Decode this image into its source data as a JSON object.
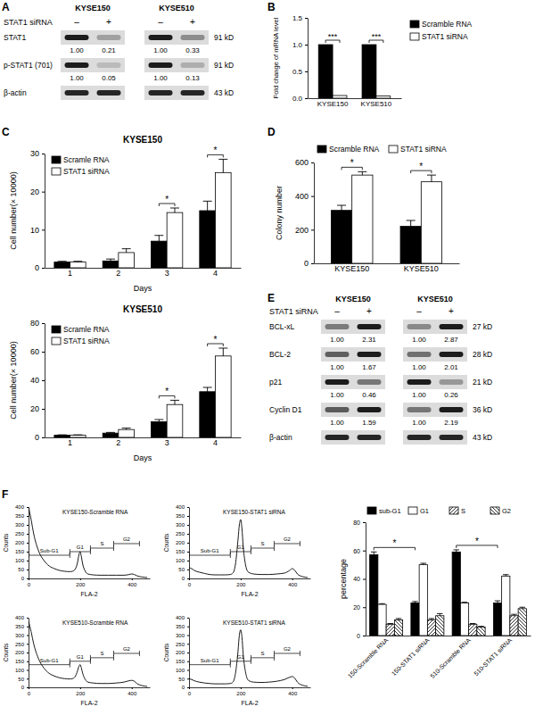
{
  "panel_labels": [
    "A",
    "B",
    "C",
    "D",
    "E",
    "F"
  ],
  "blots": [
    {
      "cell_lines": [
        "KYSE150",
        "KYSE510"
      ],
      "treatment": "STAT1 siRNA",
      "lanes": [
        "–",
        "+"
      ],
      "rows": [
        {
          "protein": "STAT1",
          "size": "91 kD",
          "quant": [
            [
              {
                "value": 1.0,
                "label": "1.00"
              },
              {
                "value": 0.21,
                "label": "0.21"
              }
            ],
            [
              {
                "value": 1.0,
                "label": "1.00"
              },
              {
                "value": 0.33,
                "label": "0.33"
              }
            ]
          ]
        },
        {
          "protein": "p-STAT1 (701)",
          "size": "91 kD",
          "quant": [
            [
              {
                "value": 1.0,
                "label": "1.00"
              },
              {
                "value": 0.05,
                "label": "0.05"
              }
            ],
            [
              {
                "value": 1.0,
                "label": "1.00"
              },
              {
                "value": 0.13,
                "label": "0.13"
              }
            ]
          ]
        },
        {
          "protein": "β-actin",
          "size": "43 kD"
        }
      ]
    },
    {
      "cell_lines": [
        "KYSE150",
        "KYSE510"
      ],
      "treatment": "STAT1 siRNA",
      "lanes": [
        "–",
        "+"
      ],
      "rows": [
        {
          "protein": "BCL-xL",
          "size": "27 kD",
          "quant": [
            [
              {
                "value": 1.0,
                "label": "1.00"
              },
              {
                "value": 2.31,
                "label": "2.31"
              }
            ],
            [
              {
                "value": 1.0,
                "label": "1.00"
              },
              {
                "value": 2.87,
                "label": "2.87"
              }
            ]
          ]
        },
        {
          "protein": "BCL-2",
          "size": "28 kD",
          "quant": [
            [
              {
                "value": 1.0,
                "label": "1.00"
              },
              {
                "value": 1.67,
                "label": "1.67"
              }
            ],
            [
              {
                "value": 1.0,
                "label": "1.00"
              },
              {
                "value": 2.01,
                "label": "2.01"
              }
            ]
          ]
        },
        {
          "protein": "p21",
          "size": "21 kD",
          "quant": [
            [
              {
                "value": 1.0,
                "label": "1.00"
              },
              {
                "value": 0.46,
                "label": "0.46"
              }
            ],
            [
              {
                "value": 1.0,
                "label": "1.00"
              },
              {
                "value": 0.26,
                "label": "0.26"
              }
            ]
          ]
        },
        {
          "protein": "Cyclin D1",
          "size": "36 kD",
          "quant": [
            [
              {
                "value": 1.0,
                "label": "1.00"
              },
              {
                "value": 1.59,
                "label": "1.59"
              }
            ],
            [
              {
                "value": 1.0,
                "label": "1.00"
              },
              {
                "value": 2.19,
                "label": "2.19"
              }
            ]
          ]
        },
        {
          "protein": "β-actin",
          "size": "43 kD"
        }
      ]
    }
  ],
  "chart_data": [
    {
      "type": "bar",
      "categories": [
        "KYSE150",
        "KYSE510"
      ],
      "series": [
        {
          "name": "Scramble RNA",
          "color": "#000000",
          "values": [
            1.0,
            1.0
          ]
        },
        {
          "name": "STAT1 siRNA",
          "color": "#ffffff",
          "values": [
            0.05,
            0.04
          ]
        }
      ],
      "ylim": [
        0,
        1.5
      ],
      "yticks": [
        {
          "value": 0,
          "label": "0.0"
        },
        {
          "value": 0.5,
          "label": "0.5"
        },
        {
          "value": 1,
          "label": "1.0"
        },
        {
          "value": 1.5,
          "label": "1.5"
        }
      ],
      "ylabel": "Fold change of mRNA level",
      "legend": "top-right",
      "annotations": [
        {
          "text": "***",
          "category": 0
        },
        {
          "text": "***",
          "category": 1
        }
      ]
    },
    {
      "type": "bar",
      "title": "KYSE150",
      "categories": [
        "1",
        "2",
        "3",
        "4"
      ],
      "xlabel": "Days",
      "ylabel": "Cell number(× 10000)",
      "series": [
        {
          "name": "Scramle RNA",
          "color": "#000000",
          "values": [
            1.5,
            1.8,
            7,
            15
          ],
          "errors": [
            0.2,
            0.5,
            1.5,
            2.5
          ]
        },
        {
          "name": "STAT1 siRNA",
          "color": "#ffffff",
          "values": [
            1.5,
            4,
            14.5,
            25
          ],
          "errors": [
            0.2,
            1,
            1.2,
            3.5
          ]
        }
      ],
      "ylim": [
        0,
        30
      ],
      "yticks": [
        0,
        10,
        20,
        30
      ],
      "legend": "top-left",
      "annotations": [
        {
          "text": "*",
          "category": 2
        },
        {
          "text": "*",
          "category": 3
        }
      ]
    },
    {
      "type": "bar",
      "title": "KYSE510",
      "categories": [
        "1",
        "2",
        "3",
        "4"
      ],
      "xlabel": "Days",
      "ylabel": "Cell number(× 10000)",
      "series": [
        {
          "name": "Scramle RNA",
          "color": "#000000",
          "values": [
            1.5,
            3,
            11,
            32
          ],
          "errors": [
            0.3,
            0.5,
            1.5,
            3
          ]
        },
        {
          "name": "STAT1 siRNA",
          "color": "#ffffff",
          "values": [
            1.5,
            5.5,
            23,
            57
          ],
          "errors": [
            0.3,
            1,
            3,
            5.5
          ]
        }
      ],
      "ylim": [
        0,
        80
      ],
      "yticks": [
        0,
        20,
        40,
        60,
        80
      ],
      "legend": "top-left",
      "annotations": [
        {
          "text": "*",
          "category": 2
        },
        {
          "text": "*",
          "category": 3
        }
      ]
    },
    {
      "type": "bar",
      "categories": [
        "KYSE150",
        "KYSE510"
      ],
      "ylabel": "Colony number",
      "series": [
        {
          "name": "Scramble RNA",
          "color": "#000000",
          "values": [
            315,
            220
          ],
          "errors": [
            30,
            35
          ]
        },
        {
          "name": "STAT1 siRNA",
          "color": "#ffffff",
          "values": [
            525,
            485
          ],
          "errors": [
            20,
            40
          ]
        }
      ],
      "ylim": [
        0,
        600
      ],
      "yticks": [
        0,
        200,
        400,
        600
      ],
      "legend": "top-left",
      "annotations": [
        {
          "text": "*",
          "category": 0
        },
        {
          "text": "*",
          "category": 1
        }
      ]
    },
    {
      "type": "line",
      "title": "KYSE150-Scramble RNA",
      "xlabel": "FLA-2",
      "ylabel": "Counts",
      "color": "#000000",
      "x": [
        0,
        10,
        20,
        40,
        60,
        80,
        100,
        120,
        140,
        160,
        170,
        180,
        190,
        195,
        200,
        205,
        210,
        220,
        230,
        250,
        280,
        310,
        340,
        370,
        390,
        400,
        410,
        420,
        440,
        460
      ],
      "values": [
        400,
        330,
        250,
        150,
        100,
        70,
        55,
        45,
        40,
        38,
        40,
        50,
        90,
        130,
        150,
        120,
        80,
        40,
        25,
        20,
        18,
        18,
        18,
        18,
        22,
        25,
        22,
        15,
        8,
        5
      ],
      "xlim": [
        0,
        470
      ],
      "xticks": [
        0,
        200,
        400
      ],
      "ylim": [
        0,
        400
      ],
      "yticks": [
        0,
        50,
        100,
        150,
        200,
        250,
        300,
        350,
        400
      ],
      "gates": [
        {
          "label": "Sub-G1",
          "start": 0,
          "end": 160,
          "level": 130
        },
        {
          "label": "G1",
          "start": 160,
          "end": 240,
          "level": 150
        },
        {
          "label": "S",
          "start": 240,
          "end": 330,
          "level": 170
        },
        {
          "label": "G2",
          "start": 330,
          "end": 430,
          "level": 195
        }
      ]
    },
    {
      "type": "line",
      "title": "KYSE150-STAT1 siRNA",
      "xlabel": "FLA-2",
      "ylabel": "Counts",
      "color": "#000000",
      "x": [
        0,
        10,
        20,
        40,
        60,
        80,
        100,
        120,
        140,
        160,
        170,
        180,
        190,
        195,
        200,
        205,
        210,
        220,
        230,
        250,
        280,
        310,
        340,
        370,
        390,
        400,
        410,
        420,
        440,
        460
      ],
      "values": [
        60,
        55,
        45,
        35,
        28,
        22,
        20,
        20,
        20,
        22,
        30,
        80,
        220,
        300,
        330,
        280,
        180,
        70,
        35,
        25,
        22,
        22,
        25,
        30,
        45,
        55,
        45,
        25,
        10,
        5
      ],
      "xlim": [
        0,
        470
      ],
      "xticks": [
        0,
        200,
        400
      ],
      "ylim": [
        0,
        400
      ],
      "yticks": [
        0,
        50,
        100,
        150,
        200,
        250,
        300,
        350,
        400
      ],
      "gates": [
        {
          "label": "Sub-G1",
          "start": 0,
          "end": 160,
          "level": 130
        },
        {
          "label": "G1",
          "start": 160,
          "end": 240,
          "level": 150
        },
        {
          "label": "S",
          "start": 240,
          "end": 330,
          "level": 170
        },
        {
          "label": "G2",
          "start": 330,
          "end": 430,
          "level": 195
        }
      ]
    },
    {
      "type": "line",
      "title": "KYSE510-Scramble RNA",
      "xlabel": "FLA-2",
      "ylabel": "Counts",
      "color": "#000000",
      "x": [
        0,
        10,
        20,
        40,
        60,
        80,
        100,
        120,
        140,
        160,
        170,
        180,
        190,
        195,
        200,
        205,
        210,
        220,
        230,
        250,
        280,
        310,
        340,
        370,
        390,
        400,
        410,
        420,
        440,
        460
      ],
      "values": [
        380,
        320,
        250,
        160,
        110,
        80,
        65,
        55,
        50,
        48,
        50,
        60,
        95,
        120,
        130,
        110,
        80,
        45,
        30,
        25,
        22,
        22,
        25,
        30,
        38,
        40,
        35,
        22,
        10,
        5
      ],
      "xlim": [
        0,
        470
      ],
      "xticks": [
        0,
        200,
        400
      ],
      "ylim": [
        0,
        400
      ],
      "yticks": [
        0,
        50,
        100,
        150,
        200,
        250,
        300,
        350,
        400
      ],
      "gates": [
        {
          "label": "Sub-G1",
          "start": 0,
          "end": 160,
          "level": 130
        },
        {
          "label": "G1",
          "start": 160,
          "end": 240,
          "level": 150
        },
        {
          "label": "S",
          "start": 240,
          "end": 330,
          "level": 170
        },
        {
          "label": "G2",
          "start": 330,
          "end": 430,
          "level": 195
        }
      ]
    },
    {
      "type": "line",
      "title": "KYSE510-STAT1 siRNA",
      "xlabel": "FLA-2",
      "ylabel": "Counts",
      "color": "#000000",
      "x": [
        0,
        10,
        20,
        40,
        60,
        80,
        100,
        120,
        140,
        160,
        170,
        180,
        190,
        195,
        200,
        205,
        210,
        220,
        230,
        250,
        280,
        310,
        340,
        370,
        390,
        400,
        410,
        420,
        440,
        460
      ],
      "values": [
        50,
        45,
        38,
        30,
        25,
        22,
        20,
        20,
        20,
        22,
        30,
        80,
        210,
        300,
        330,
        290,
        190,
        80,
        40,
        30,
        28,
        30,
        35,
        45,
        58,
        62,
        52,
        30,
        12,
        6
      ],
      "xlim": [
        0,
        470
      ],
      "xticks": [
        0,
        200,
        400
      ],
      "ylim": [
        0,
        400
      ],
      "yticks": [
        0,
        50,
        100,
        150,
        200,
        250,
        300,
        350,
        400
      ],
      "gates": [
        {
          "label": "Sub-G1",
          "start": 0,
          "end": 160,
          "level": 130
        },
        {
          "label": "G1",
          "start": 160,
          "end": 240,
          "level": 150
        },
        {
          "label": "S",
          "start": 240,
          "end": 330,
          "level": 170
        },
        {
          "label": "G2",
          "start": 330,
          "end": 430,
          "level": 195
        }
      ]
    },
    {
      "type": "bar",
      "categories": [
        "150-Scramble RNA",
        "150-STAT1 siRNA",
        "510-Scramble RNA",
        "510-STAT1 siRNA"
      ],
      "ylabel": "percentage",
      "series": [
        {
          "name": "sub-G1",
          "color": "#000000",
          "values": [
            57,
            23,
            59,
            23
          ],
          "errors": [
            2,
            1,
            1.5,
            1.5
          ]
        },
        {
          "name": "G1",
          "color": "#ffffff",
          "values": [
            22,
            50,
            23,
            42
          ],
          "errors": [
            0.5,
            1,
            0.5,
            1
          ]
        },
        {
          "name": "S",
          "color": "#000000",
          "values": [
            8,
            11,
            8,
            14
          ],
          "errors": [
            0.5,
            1,
            0.5,
            1
          ]
        },
        {
          "name": "G2",
          "color": "#000000",
          "values": [
            11,
            14,
            6,
            19
          ],
          "errors": [
            1,
            1.5,
            0.5,
            1
          ]
        }
      ],
      "ylim": [
        0,
        80
      ],
      "yticks": [
        0,
        20,
        40,
        60,
        80
      ],
      "legend": "top",
      "annotations": [
        {
          "text": "*",
          "categories": [
            0,
            1
          ],
          "series": 0
        },
        {
          "text": "*",
          "categories": [
            2,
            3
          ],
          "series": 0
        }
      ]
    }
  ]
}
